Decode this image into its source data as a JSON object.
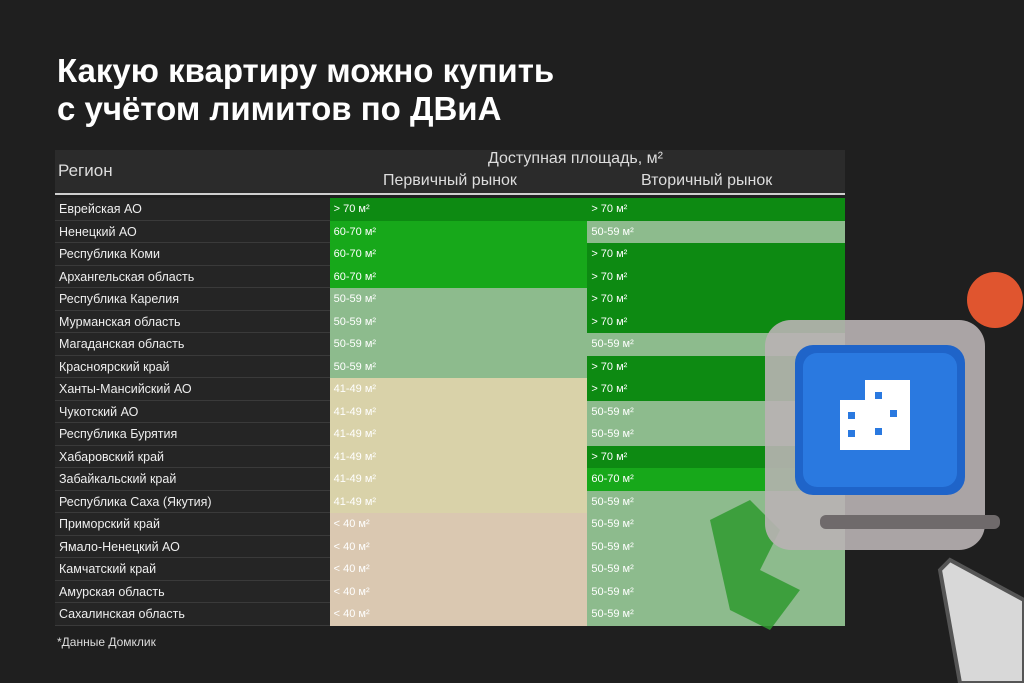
{
  "title": [
    "Какую квартиру можно купить",
    "с учётом лимитов по ДВиА"
  ],
  "table": {
    "header": {
      "region": "Регион",
      "group": "Доступная площадь, м²",
      "primary": "Первичный рынок",
      "secondary": "Вторичный рынок"
    },
    "rows": [
      [
        "Еврейская АО",
        "> 70 м²",
        "> 70 м²"
      ],
      [
        "Ненецкий АО",
        "60-70 м²",
        "50-59 м²"
      ],
      [
        "Республика Коми",
        "60-70 м²",
        "> 70 м²"
      ],
      [
        "Архангельская область",
        "60-70 м²",
        "> 70 м²"
      ],
      [
        "Республика Карелия",
        "50-59 м²",
        "> 70 м²"
      ],
      [
        "Мурманская область",
        "50-59 м²",
        "> 70 м²"
      ],
      [
        "Магаданская область",
        "50-59 м²",
        "50-59 м²"
      ],
      [
        "Красноярский край",
        "50-59 м²",
        "> 70 м²"
      ],
      [
        "Ханты-Мансийский АО",
        "41-49 м²",
        "> 70 м²"
      ],
      [
        "Чукотский АО",
        "41-49 м²",
        "50-59 м²"
      ],
      [
        "Республика Бурятия",
        "41-49 м²",
        "50-59 м²"
      ],
      [
        "Хабаровский край",
        "41-49 м²",
        "> 70 м²"
      ],
      [
        "Забайкальский край",
        "41-49 м²",
        "60-70 м²"
      ],
      [
        "Республика Саха (Якутия)",
        "41-49 м²",
        "50-59 м²"
      ],
      [
        "Приморский край",
        "< 40 м²",
        "50-59 м²"
      ],
      [
        "Ямало-Ненецкий АО",
        "< 40 м²",
        "50-59 м²"
      ],
      [
        "Камчатский край",
        "< 40 м²",
        "50-59 м²"
      ],
      [
        "Амурская область",
        "< 40 м²",
        "50-59 м²"
      ],
      [
        "Сахалинская область",
        "< 40 м²",
        "50-59 м²"
      ]
    ],
    "cell_colors": {
      "> 70 м²": "#0d8a12",
      "60-70 м²": "#17a81a",
      "50-59 м²": "#8dbb8d",
      "41-49 м²": "#d9d2a9",
      "< 40 м²": "#dac8b1"
    }
  },
  "footnote": "*Данные Домклик"
}
